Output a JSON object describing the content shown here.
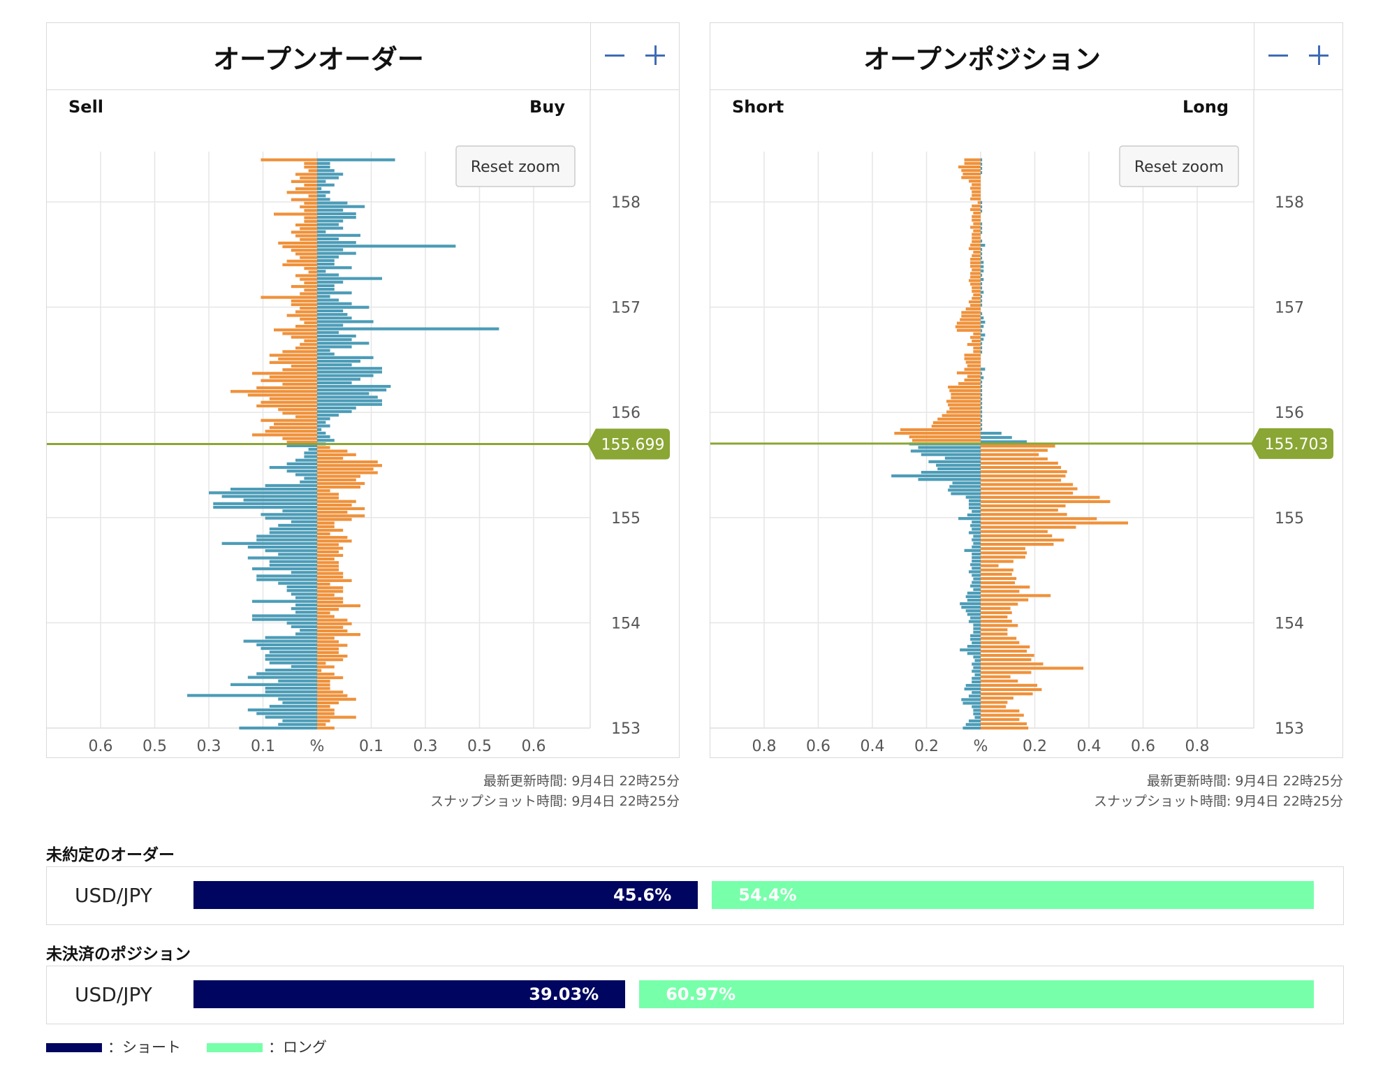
{
  "chart_data": [
    {
      "type": "bar",
      "title": "オープンオーダー",
      "left_label": "Sell",
      "right_label": "Buy",
      "center_tick_label": "%",
      "x_ticks": [
        -0.6,
        -0.5,
        -0.3,
        -0.1,
        0,
        0.1,
        0.3,
        0.5,
        0.6
      ],
      "x_tick_labels": [
        "0.6",
        "0.5",
        "0.3",
        "0.1",
        "%",
        "0.1",
        "0.3",
        "0.5",
        "0.6"
      ],
      "y_ticks": [
        153,
        154,
        155,
        156,
        157,
        158
      ],
      "y_range": [
        153,
        158.5
      ],
      "current_price": "155.699",
      "current_price_value": 155.699,
      "reset_zoom_label": "Reset zoom",
      "colors": {
        "blue": "#4c9cb7",
        "orange": "#ef913a",
        "price_line": "#8aa634"
      },
      "price_start": 153.0,
      "price_step": 0.05,
      "left_values": [
        0.13,
        0.03,
        0.03,
        0.02,
        0.05,
        0.04,
        0.06,
        0.03,
        0.05,
        0.07,
        0.02,
        0.06,
        0.03,
        0.04,
        0.03,
        0.1,
        0.03,
        0.03,
        0.05,
        0.04,
        0.06,
        0.05,
        0.04,
        0.09,
        0.08,
        0.06,
        0.05,
        0.04,
        0.07,
        0.08,
        0.03,
        0.02,
        0.05,
        0.04,
        0.03,
        0.06,
        0.03,
        0.04,
        0.13,
        0.06,
        0.06,
        0.04,
        0.05,
        0.07,
        0.04,
        0.03,
        0.05,
        0.1,
        0.08,
        0.06,
        0.03,
        0.04,
        0.05,
        0.08,
        0.11,
        0.09,
        0.11,
        0.06,
        0.08,
        0.15,
        0.11,
        0.13,
        0.08,
        0.14,
        0.2,
        0.16,
        0.11,
        0.13,
        0.14,
        0.09,
        0.08,
        0.05,
        0.13,
        0.1,
        0.11,
        0.12,
        0.15,
        0.08,
        0.07,
        0.07,
        0.02,
        0.03,
        0.03,
        0.05,
        0.07,
        0.11,
        0.07,
        0.05,
        0.03,
        0.04,
        0.12,
        0.2,
        0.25,
        0.22,
        0.17,
        0.24,
        0.24,
        0.08,
        0.13,
        0.12,
        0.06,
        0.09,
        0.11,
        0.11,
        0.14,
        0.14,
        0.22,
        0.16,
        0.12,
        0.09,
        0.16,
        0.11,
        0.11,
        0.15,
        0.06,
        0.14,
        0.14,
        0.09,
        0.07,
        0.07,
        0.06,
        0.05,
        0.15,
        0.05,
        0.06,
        0.05,
        0.15,
        0.15,
        0.07,
        0.06,
        0.04,
        0.05,
        0.12,
        0.17,
        0.14,
        0.13,
        0.11,
        0.12,
        0.12,
        0.11,
        0.06,
        0.12,
        0.14,
        0.16,
        0.09,
        0.2,
        0.12,
        0.12,
        0.3,
        0.09,
        0.08,
        0.11,
        0.16,
        0.14,
        0.12,
        0.08,
        0.09,
        0.18
      ],
      "right_values": [
        0.18,
        0.03,
        0.03,
        0.04,
        0.06,
        0.05,
        0.02,
        0.04,
        0.01,
        0.03,
        0.02,
        0.03,
        0.07,
        0.11,
        0.06,
        0.09,
        0.09,
        0.06,
        0.05,
        0.06,
        0.02,
        0.1,
        0.05,
        0.09,
        0.32,
        0.06,
        0.09,
        0.05,
        0.04,
        0.04,
        0.08,
        0.02,
        0.05,
        0.15,
        0.06,
        0.04,
        0.04,
        0.08,
        0.03,
        0.05,
        0.08,
        0.12,
        0.06,
        0.07,
        0.08,
        0.13,
        0.06,
        0.42,
        0.05,
        0.09,
        0.08,
        0.12,
        0.08,
        0.03,
        0.04,
        0.13,
        0.1,
        0.08,
        0.15,
        0.15,
        0.13,
        0.1,
        0.08,
        0.17,
        0.16,
        0.12,
        0.14,
        0.15,
        0.15,
        0.09,
        0.08,
        0.05,
        0.03,
        0.02,
        0.03,
        0.01,
        0.02,
        0.03,
        0.04,
        0.02,
        0.03,
        0.07,
        0.09,
        0.06,
        0.14,
        0.15,
        0.13,
        0.14,
        0.1,
        0.09,
        0.11,
        0.1,
        0.03,
        0.05,
        0.05,
        0.09,
        0.08,
        0.11,
        0.07,
        0.11,
        0.08,
        0.04,
        0.04,
        0.06,
        0.03,
        0.07,
        0.08,
        0.05,
        0.06,
        0.05,
        0.06,
        0.04,
        0.05,
        0.05,
        0.05,
        0.06,
        0.06,
        0.08,
        0.03,
        0.06,
        0.06,
        0.04,
        0.06,
        0.06,
        0.1,
        0.05,
        0.03,
        0.04,
        0.07,
        0.08,
        0.06,
        0.07,
        0.1,
        0.04,
        0.05,
        0.07,
        0.05,
        0.05,
        0.07,
        0.06,
        0.02,
        0.04,
        0.01,
        0.04,
        0.06,
        0.03,
        0.03,
        0.03,
        0.06,
        0.07,
        0.09,
        0.05,
        0.03,
        0.04,
        0.04,
        0.09,
        0.03,
        0.02,
        0.04
      ]
    },
    {
      "type": "bar",
      "title": "オープンポジション",
      "left_label": "Short",
      "right_label": "Long",
      "center_tick_label": "%",
      "x_ticks": [
        -0.8,
        -0.6,
        -0.4,
        -0.2,
        0,
        0.2,
        0.4,
        0.6,
        0.8
      ],
      "x_tick_labels": [
        "0.8",
        "0.6",
        "0.4",
        "0.2",
        "%",
        "0.2",
        "0.4",
        "0.6",
        "0.8"
      ],
      "y_ticks": [
        153,
        154,
        155,
        156,
        157,
        158
      ],
      "y_range": [
        153,
        158.5
      ],
      "current_price": "155.703",
      "current_price_value": 155.703,
      "reset_zoom_label": "Reset zoom",
      "colors": {
        "blue": "#4c9cb7",
        "orange": "#ef913a",
        "price_line": "#8aa634"
      },
      "price_start": 153.0,
      "price_step": 0.05,
      "left_values": [
        0.11,
        0.11,
        0.15,
        0.13,
        0.12,
        0.13,
        0.08,
        0.06,
        0.07,
        0.06,
        0.06,
        0.07,
        0.02,
        0.06,
        0.07,
        0.05,
        0.06,
        0.06,
        0.05,
        0.07,
        0.05,
        0.06,
        0.06,
        0.06,
        0.07,
        0.08,
        0.05,
        0.06,
        0.07,
        0.07,
        0.07,
        0.06,
        0.07,
        0.07,
        0.08,
        0.07,
        0.06,
        0.06,
        0.05,
        0.06,
        0.08,
        0.07,
        0.1,
        0.13,
        0.13,
        0.14,
        0.16,
        0.17,
        0.16,
        0.05,
        0.07,
        0.06,
        0.09,
        0.05,
        0.05,
        0.11,
        0.11,
        0.1,
        0.09,
        0.11,
        0.16,
        0.09,
        0.11,
        0.15,
        0.22,
        0.21,
        0.2,
        0.2,
        0.23,
        0.22,
        0.21,
        0.23,
        0.26,
        0.29,
        0.32,
        0.33,
        0.54,
        0.58,
        0.48,
        0.46,
        0.48,
        0.42,
        0.47,
        0.4,
        0.24,
        0.35,
        0.3,
        0.29,
        0.4,
        0.6,
        0.42,
        0.19,
        0.21,
        0.22,
        0.2,
        0.1,
        0.08,
        0.08,
        0.08,
        0.06,
        0.09,
        0.15,
        0.06,
        0.07,
        0.06,
        0.08,
        0.05,
        0.06,
        0.05,
        0.06,
        0.11,
        0.06,
        0.06,
        0.06,
        0.07,
        0.06,
        0.08,
        0.06,
        0.05,
        0.06,
        0.07,
        0.05,
        0.09,
        0.1,
        0.09,
        0.14,
        0.13,
        0.1,
        0.09,
        0.07,
        0.08,
        0.05,
        0.05,
        0.05,
        0.07,
        0.07,
        0.06,
        0.09,
        0.14,
        0.09,
        0.05,
        0.04,
        0.06,
        0.05,
        0.06,
        0.04,
        0.06,
        0.06,
        0.1,
        0.11,
        0.06,
        0.08,
        0.13,
        0.12,
        0.06,
        0.05,
        0.05,
        0.04,
        0.08,
        0.1,
        0.12
      ],
      "right_values": [
        0.01,
        0.01,
        0.01,
        0.01,
        0.0,
        0.0,
        0.0,
        0.0,
        0.0,
        0.0,
        0.01,
        0.01,
        0.01,
        0.0,
        0.0,
        0.01,
        0.01,
        0.01,
        0.0,
        0.01,
        0.03,
        0.01,
        0.01,
        0.01,
        0.02,
        0.02,
        0.02,
        0.01,
        0.02,
        0.01,
        0.01,
        0.02,
        0.01,
        0.01,
        0.01,
        0.0,
        0.01,
        0.02,
        0.03,
        0.02,
        0.01,
        0.03,
        0.02,
        0.01,
        0.01,
        0.01,
        0.0,
        0.0,
        0.0,
        0.03,
        0.01,
        0.02,
        0.01,
        0.01,
        0.01,
        0.01,
        0.01,
        0.01,
        0.01,
        0.01,
        0.01,
        0.01,
        0.01,
        0.01,
        0.14,
        0.21,
        0.31,
        0.5,
        0.45,
        0.39,
        0.45,
        0.52,
        0.54,
        0.58,
        0.57,
        0.54,
        0.62,
        0.65,
        0.62,
        0.8,
        0.87,
        0.57,
        0.52,
        0.58,
        0.78,
        0.99,
        0.64,
        0.45,
        0.48,
        0.56,
        0.49,
        0.3,
        0.31,
        0.3,
        0.22,
        0.12,
        0.22,
        0.21,
        0.24,
        0.23,
        0.33,
        0.26,
        0.47,
        0.32,
        0.25,
        0.2,
        0.21,
        0.18,
        0.21,
        0.25,
        0.18,
        0.18,
        0.24,
        0.26,
        0.33,
        0.31,
        0.36,
        0.34,
        0.42,
        0.69,
        0.34,
        0.2,
        0.25,
        0.38,
        0.41,
        0.35,
        0.22,
        0.18,
        0.17,
        0.26,
        0.29,
        0.26,
        0.31,
        0.32
      ],
      "note": ""
    }
  ],
  "panels": {
    "orders": {
      "updated": "最新更新時間: 9月4日  22時25分",
      "snapshot": "スナップショット時間: 9月4日  22時25分"
    },
    "positions": {
      "updated": "最新更新時間: 9月4日  22時25分",
      "snapshot": "スナップショット時間: 9月4日  22時25分"
    }
  },
  "ratios": {
    "orders_title": "未約定のオーダー",
    "positions_title": "未決済のポジション",
    "orders": {
      "pair": "USD/JPY",
      "short_pct": 45.6,
      "short_label": "45.6%",
      "long_pct": 54.4,
      "long_label": "54.4%"
    },
    "positions": {
      "pair": "USD/JPY",
      "short_pct": 39.03,
      "short_label": "39.03%",
      "long_pct": 60.97,
      "long_label": "60.97%"
    },
    "colors": {
      "short": "#000660",
      "long": "#78ffaa"
    }
  },
  "legend": {
    "short_label": "：ショート",
    "long_label": "：ロング"
  }
}
